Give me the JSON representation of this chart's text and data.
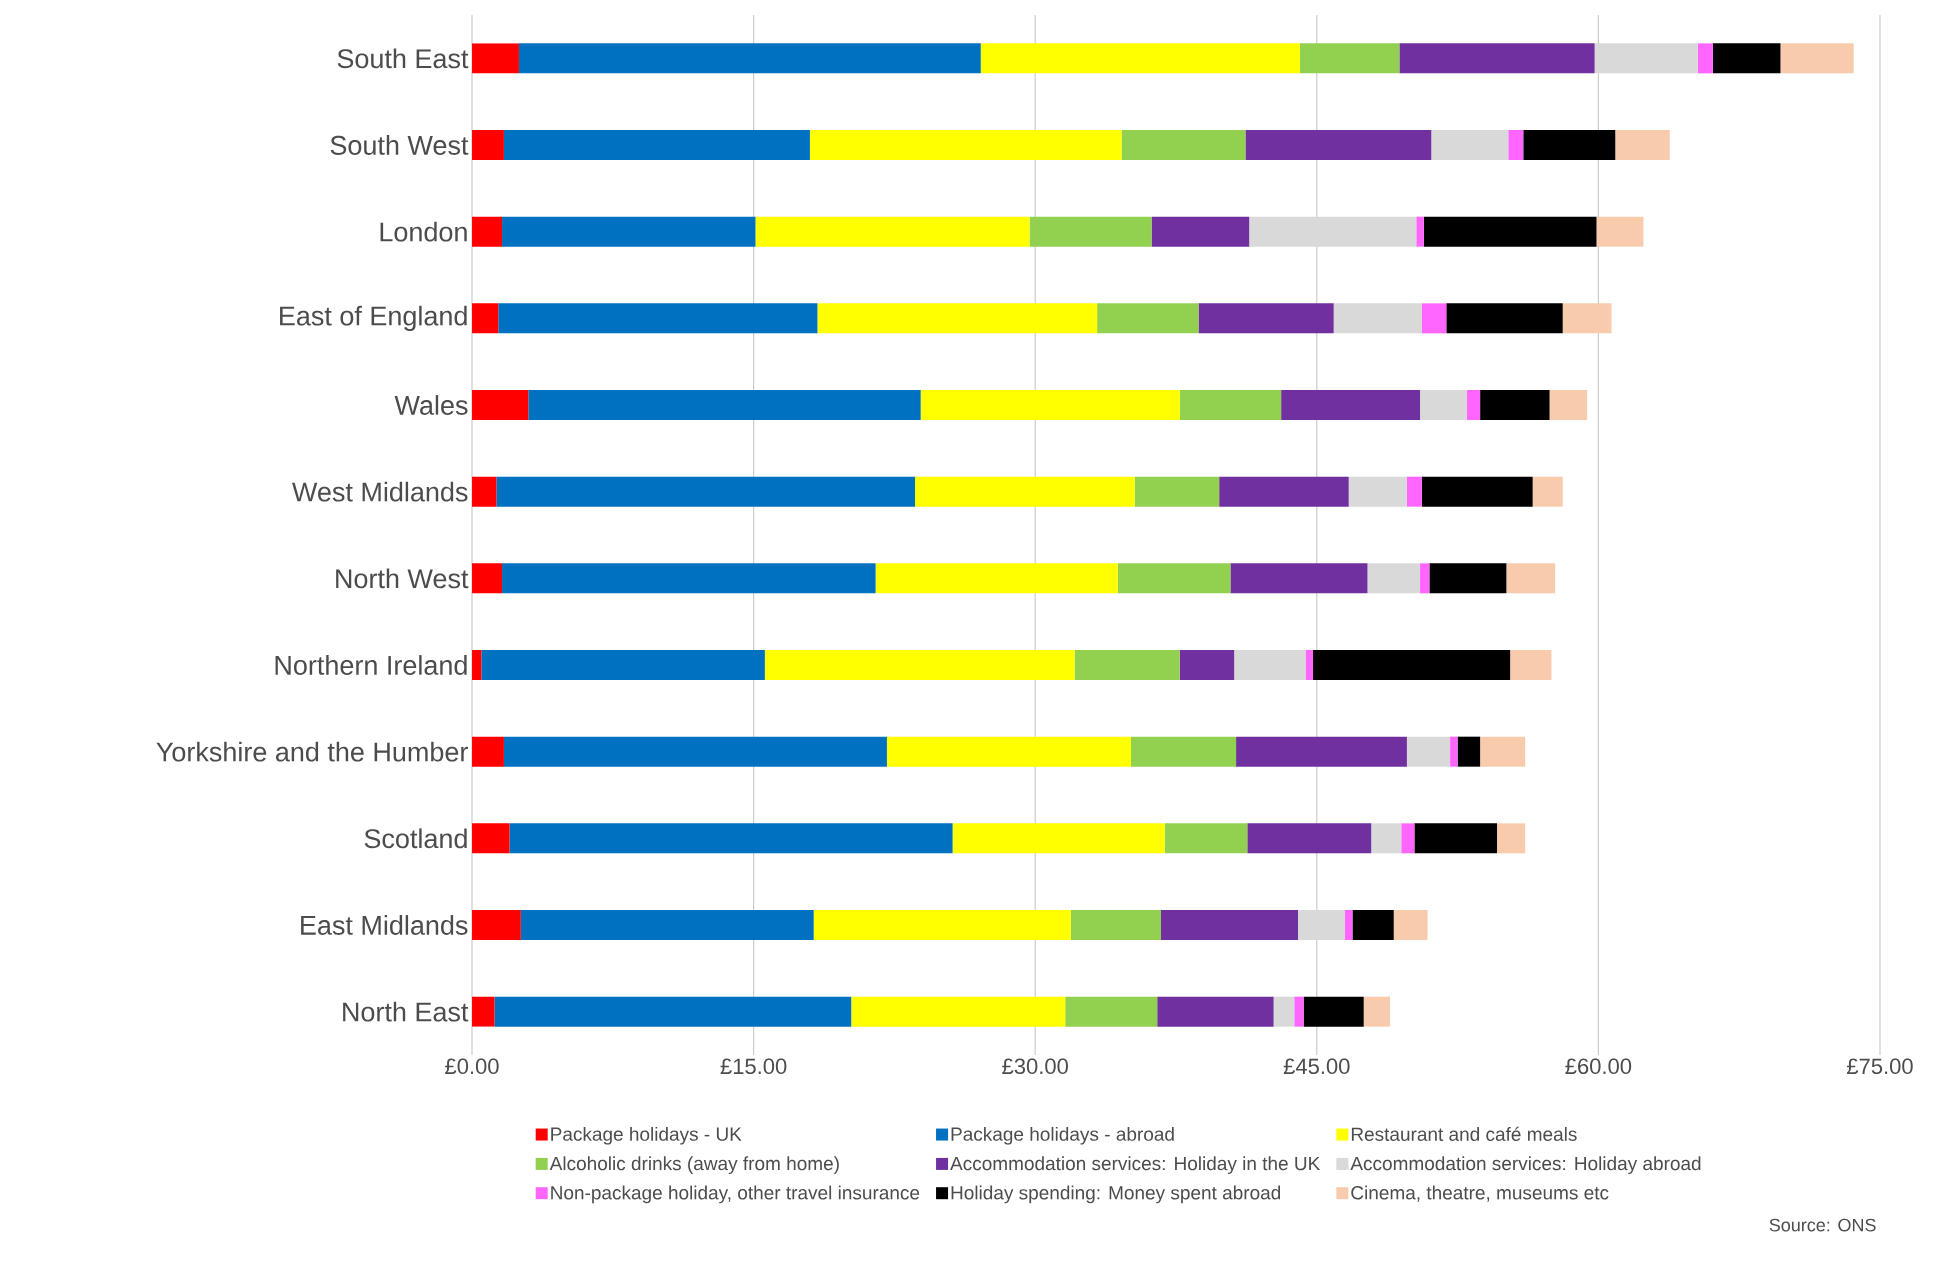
{
  "chart_data": {
    "type": "bar",
    "orientation": "horizontal",
    "stacked": true,
    "categories": [
      "South East",
      "South West",
      "London",
      "East of England",
      "Wales",
      "West Midlands",
      "North West",
      "Northern Ireland",
      "Yorkshire and the Humber",
      "Scotland",
      "East Midlands",
      "North East"
    ],
    "series": [
      {
        "name": "Package holidays - UK",
        "color": "#ff0000",
        "values": [
          2.5,
          1.7,
          1.6,
          1.4,
          3.0,
          1.3,
          1.6,
          0.5,
          1.7,
          2.0,
          2.6,
          1.2
        ]
      },
      {
        "name": "Package holidays - abroad",
        "color": "#0070c0",
        "values": [
          24.6,
          16.3,
          13.5,
          17.0,
          20.9,
          22.3,
          19.9,
          15.1,
          20.4,
          23.6,
          15.6,
          19.0
        ]
      },
      {
        "name": "Restaurant and café meals",
        "color": "#ffff00",
        "values": [
          17.0,
          16.6,
          14.6,
          14.9,
          13.8,
          11.7,
          12.9,
          16.5,
          13.0,
          11.3,
          13.7,
          11.4
        ]
      },
      {
        "name": "Alcoholic drinks (away from home)",
        "color": "#92d050",
        "values": [
          5.3,
          6.6,
          6.5,
          5.4,
          5.4,
          4.5,
          6.0,
          5.6,
          5.6,
          4.4,
          4.8,
          4.9
        ]
      },
      {
        "name": "Accommodation services: Holiday in the UK",
        "color": "#7030a0",
        "values": [
          10.4,
          9.9,
          5.2,
          7.2,
          7.4,
          6.9,
          7.3,
          2.9,
          9.1,
          6.6,
          7.3,
          6.2
        ]
      },
      {
        "name": "Accommodation services: Holiday abroad",
        "color": "#d9d9d9",
        "values": [
          5.5,
          4.1,
          8.9,
          4.7,
          2.5,
          3.1,
          2.8,
          3.8,
          2.3,
          1.6,
          2.5,
          1.1
        ]
      },
      {
        "name": "Non-package holiday, other travel insurance",
        "color": "#ff66ff",
        "values": [
          0.8,
          0.8,
          0.4,
          1.3,
          0.7,
          0.8,
          0.5,
          0.4,
          0.4,
          0.7,
          0.4,
          0.5
        ]
      },
      {
        "name": "Holiday spending: Money spent abroad",
        "color": "#000000",
        "values": [
          3.6,
          4.9,
          9.2,
          6.2,
          3.7,
          5.9,
          4.1,
          10.5,
          1.2,
          4.4,
          2.2,
          3.2
        ]
      },
      {
        "name": "Cinema, theatre, museums etc",
        "color": "#f8cbad",
        "values": [
          3.9,
          2.9,
          2.5,
          2.6,
          2.0,
          1.6,
          2.6,
          2.2,
          2.4,
          1.5,
          1.8,
          1.4
        ]
      }
    ],
    "xlim": [
      0,
      75
    ],
    "xticks": [
      {
        "value": 0,
        "label": "£0.00"
      },
      {
        "value": 15,
        "label": "£15.00"
      },
      {
        "value": 30,
        "label": "£30.00"
      },
      {
        "value": 45,
        "label": "£45.00"
      },
      {
        "value": 60,
        "label": "£60.00"
      },
      {
        "value": 75,
        "label": "£75.00"
      }
    ],
    "grid": "x",
    "legend": "bottom",
    "annotations": [
      "Source: ONS"
    ]
  }
}
